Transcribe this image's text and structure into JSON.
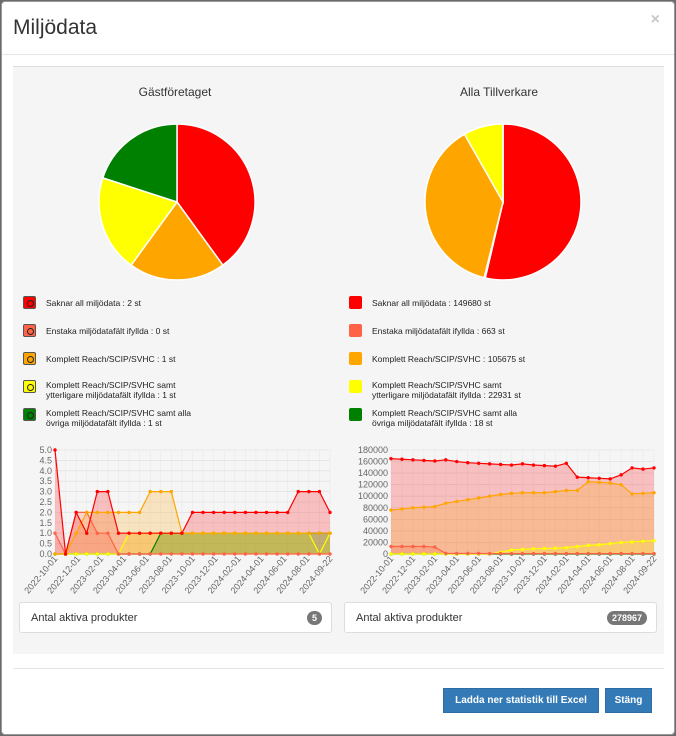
{
  "modal": {
    "title": "Miljödata",
    "close_glyph": "×",
    "download_label": "Ladda ner statistik till Excel",
    "close_label": "Stäng"
  },
  "colors": {
    "saknar": "#ff0000",
    "enstaka": "#ff6347",
    "komplett": "#ffa500",
    "ytterligare": "#ffff00",
    "alla": "#008000"
  },
  "left": {
    "title": "Gästföretaget",
    "legend": [
      {
        "lines": [
          "Saknar all miljödata : 2 st"
        ],
        "color": "#ff0000",
        "icon": "warning-circle-icon"
      },
      {
        "lines": [
          "Enstaka miljödatafält ifyllda : 0 st"
        ],
        "color": "#ff6347",
        "icon": "warning-circle-icon"
      },
      {
        "lines": [
          "Komplett Reach/SCIP/SVHC : 1 st"
        ],
        "color": "#ffa500",
        "icon": "warning-circle-icon"
      },
      {
        "lines": [
          "Komplett Reach/SCIP/SVHC samt",
          "ytterligare miljödatafält ifyllda : 1 st"
        ],
        "color": "#ffff00",
        "icon": "warning-circle-icon"
      },
      {
        "lines": [
          "Komplett Reach/SCIP/SVHC samt alla",
          "övriga miljödatafält ifyllda : 1 st"
        ],
        "color": "#008000",
        "icon": "warning-circle-icon"
      }
    ],
    "count_label": "Antal aktiva produkter",
    "count": "5"
  },
  "right": {
    "title": "Alla Tillverkare",
    "legend": [
      {
        "lines": [
          "Saknar all miljödata : 149680 st"
        ],
        "color": "#ff0000"
      },
      {
        "lines": [
          "Enstaka miljödatafält ifyllda : 663 st"
        ],
        "color": "#ff6347"
      },
      {
        "lines": [
          "Komplett Reach/SCIP/SVHC : 105675 st"
        ],
        "color": "#ffa500"
      },
      {
        "lines": [
          "Komplett Reach/SCIP/SVHC samt",
          "ytterligare miljödatafält ifyllda : 22931 st"
        ],
        "color": "#ffff00"
      },
      {
        "lines": [
          "Komplett Reach/SCIP/SVHC samt alla",
          "övriga miljödatafält ifyllda : 18 st"
        ],
        "color": "#008000"
      }
    ],
    "count_label": "Antal aktiva produkter",
    "count": "278967"
  },
  "chart_data": [
    {
      "type": "pie",
      "labels": [
        "Saknar all miljödata",
        "Enstaka miljödatafält ifyllda",
        "Komplett Reach/SCIP/SVHC",
        "Komplett Reach/SCIP/SVHC samt ytterligare miljödatafält ifyllda",
        "Komplett Reach/SCIP/SVHC samt alla övriga miljödatafält ifyllda"
      ],
      "values": [
        2,
        0,
        1,
        1,
        1
      ],
      "colors": [
        "#ff0000",
        "#ff6347",
        "#ffa500",
        "#ffff00",
        "#008000"
      ]
    },
    {
      "type": "pie",
      "labels": [
        "Saknar all miljödata",
        "Enstaka miljödatafält ifyllda",
        "Komplett Reach/SCIP/SVHC",
        "Komplett Reach/SCIP/SVHC samt ytterligare miljödatafält ifyllda",
        "Komplett Reach/SCIP/SVHC samt alla övriga miljödatafält ifyllda"
      ],
      "values": [
        149680,
        663,
        105675,
        22931,
        18
      ],
      "colors": [
        "#ff0000",
        "#ff6347",
        "#ffa500",
        "#ffff00",
        "#008000"
      ]
    },
    {
      "type": "line",
      "x_tick_labels": [
        "2022-10-01",
        "2022-12-01",
        "2023-02-01",
        "2023-04-01",
        "2023-06-01",
        "2023-08-01",
        "2023-10-01",
        "2023-12-01",
        "2024-02-01",
        "2024-04-01",
        "2024-06-01",
        "2024-08-01",
        "2024-09-22"
      ],
      "ylim": [
        0,
        5
      ],
      "y_ticks": [
        0,
        0.5,
        1,
        1.5,
        2,
        2.5,
        3,
        3.5,
        4,
        4.5,
        5
      ],
      "grid": true,
      "series": [
        {
          "color": "#ff0000",
          "values": [
            5,
            0,
            2,
            1,
            3,
            3,
            1,
            1,
            1,
            1,
            1,
            1,
            1,
            2,
            2,
            2,
            2,
            2,
            2,
            2,
            2,
            2,
            2,
            3,
            3,
            3,
            2
          ]
        },
        {
          "color": "#ff6347",
          "values": [
            1,
            0,
            2,
            2,
            1,
            1,
            0,
            0,
            0,
            0,
            0,
            0,
            0,
            0,
            0,
            0,
            0,
            0,
            0,
            0,
            0,
            0,
            0,
            0,
            0,
            0,
            0
          ]
        },
        {
          "color": "#ffa500",
          "values": [
            0,
            0,
            1,
            2,
            2,
            2,
            2,
            2,
            2,
            3,
            3,
            3,
            1,
            1,
            1,
            1,
            1,
            1,
            1,
            1,
            1,
            1,
            1,
            1,
            1,
            1,
            1
          ]
        },
        {
          "color": "#ffff00",
          "values": [
            0,
            0,
            0,
            0,
            0,
            0,
            0,
            1,
            1,
            1,
            1,
            1,
            1,
            1,
            1,
            1,
            1,
            1,
            1,
            1,
            1,
            1,
            1,
            1,
            1,
            0,
            1
          ]
        },
        {
          "color": "#008000",
          "values": [
            0,
            0,
            0,
            0,
            0,
            0,
            0,
            0,
            0,
            0,
            1,
            1,
            1,
            1,
            1,
            1,
            1,
            1,
            1,
            1,
            1,
            1,
            1,
            1,
            1,
            1,
            1
          ]
        }
      ]
    },
    {
      "type": "line",
      "x_tick_labels": [
        "2022-10-01",
        "2022-12-01",
        "2023-02-01",
        "2023-04-01",
        "2023-06-01",
        "2023-08-01",
        "2023-10-01",
        "2023-12-01",
        "2024-02-01",
        "2024-04-01",
        "2024-06-01",
        "2024-08-01",
        "2024-09-22"
      ],
      "ylim": [
        0,
        180000
      ],
      "y_ticks": [
        0,
        20000,
        40000,
        60000,
        80000,
        100000,
        120000,
        140000,
        160000,
        180000
      ],
      "grid": true,
      "series": [
        {
          "color": "#ff0000",
          "values": [
            165000,
            164000,
            163000,
            162000,
            161000,
            163000,
            160000,
            158000,
            157000,
            156000,
            155000,
            154000,
            156000,
            154000,
            153000,
            152000,
            157000,
            133000,
            132000,
            131000,
            130000,
            137000,
            149000,
            147000,
            149000
          ]
        },
        {
          "color": "#ff6347",
          "values": [
            13000,
            13000,
            13000,
            13000,
            12000,
            1000,
            1000,
            1000,
            1000,
            700,
            700,
            700,
            700,
            700,
            700,
            700,
            700,
            700,
            700,
            700,
            700,
            700,
            700,
            700,
            700
          ]
        },
        {
          "color": "#ffa500",
          "values": [
            76000,
            78000,
            80000,
            81000,
            82000,
            88000,
            91000,
            94000,
            97000,
            100000,
            103000,
            105000,
            106000,
            106000,
            106000,
            108000,
            110000,
            110000,
            125000,
            124000,
            123000,
            120000,
            104000,
            105000,
            106000
          ]
        },
        {
          "color": "#ffff00",
          "values": [
            0,
            0,
            0,
            0,
            0,
            0,
            0,
            0,
            0,
            0,
            3000,
            7000,
            8000,
            9000,
            9500,
            10000,
            11000,
            13000,
            15000,
            16000,
            18000,
            20000,
            21000,
            22000,
            23000
          ]
        },
        {
          "color": "#008000",
          "values": [
            0,
            0,
            0,
            0,
            0,
            0,
            0,
            0,
            0,
            0,
            0,
            0,
            0,
            0,
            0,
            0,
            0,
            0,
            0,
            0,
            0,
            0,
            0,
            0,
            18
          ]
        }
      ]
    }
  ]
}
